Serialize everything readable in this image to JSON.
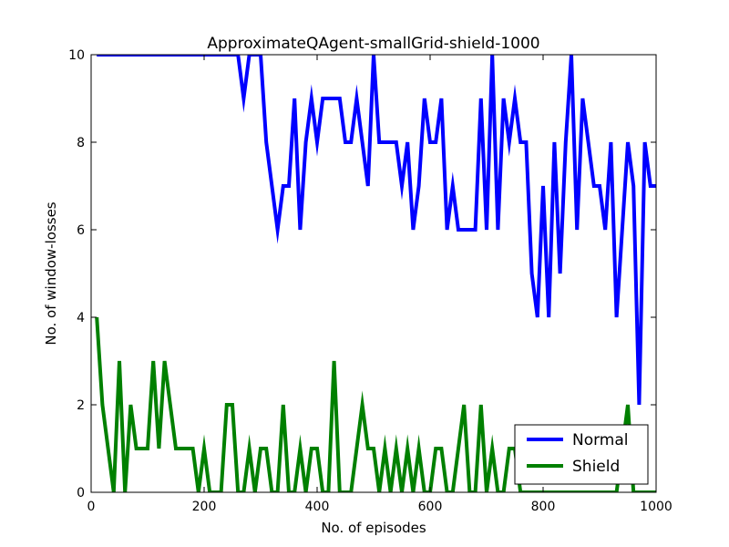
{
  "chart_data": {
    "type": "line",
    "title": "ApproximateQAgent-smallGrid-shield-1000",
    "xlabel": "No. of episodes",
    "ylabel": "No. of window-losses",
    "xlim": [
      0,
      1000
    ],
    "ylim": [
      0,
      10
    ],
    "xticks": [
      0,
      200,
      400,
      600,
      800,
      1000
    ],
    "yticks": [
      0,
      2,
      4,
      6,
      8,
      10
    ],
    "grid": false,
    "legend_position": "lower-right",
    "x": [
      10,
      20,
      30,
      40,
      50,
      60,
      70,
      80,
      90,
      100,
      110,
      120,
      130,
      140,
      150,
      160,
      170,
      180,
      190,
      200,
      210,
      220,
      230,
      240,
      250,
      260,
      270,
      280,
      290,
      300,
      310,
      320,
      330,
      340,
      350,
      360,
      370,
      380,
      390,
      400,
      410,
      420,
      430,
      440,
      450,
      460,
      470,
      480,
      490,
      500,
      510,
      520,
      530,
      540,
      550,
      560,
      570,
      580,
      590,
      600,
      610,
      620,
      630,
      640,
      650,
      660,
      670,
      680,
      690,
      700,
      710,
      720,
      730,
      740,
      750,
      760,
      770,
      780,
      790,
      800,
      810,
      820,
      830,
      840,
      850,
      860,
      870,
      880,
      890,
      900,
      910,
      920,
      930,
      940,
      950,
      960,
      970,
      980,
      990,
      1000
    ],
    "series": [
      {
        "name": "Normal",
        "color": "#0000ff",
        "values": [
          10,
          10,
          10,
          10,
          10,
          10,
          10,
          10,
          10,
          10,
          10,
          10,
          10,
          10,
          10,
          10,
          10,
          10,
          10,
          10,
          10,
          10,
          10,
          10,
          10,
          10,
          9,
          10,
          10,
          10,
          8,
          7,
          6,
          7,
          7,
          9,
          6,
          8,
          9,
          8,
          9,
          9,
          9,
          9,
          8,
          8,
          9,
          8,
          7,
          10,
          8,
          8,
          8,
          8,
          7,
          8,
          6,
          7,
          9,
          8,
          8,
          9,
          6,
          7,
          6,
          6,
          6,
          6,
          9,
          6,
          10,
          6,
          9,
          8,
          9,
          8,
          8,
          5,
          4,
          7,
          4,
          8,
          5,
          8,
          10,
          6,
          9,
          8,
          7,
          7,
          6,
          8,
          4,
          6,
          8,
          7,
          2,
          8,
          7,
          7
        ]
      },
      {
        "name": "Shield",
        "color": "#008000",
        "values": [
          4,
          2,
          1,
          0,
          3,
          0,
          2,
          1,
          1,
          1,
          3,
          1,
          3,
          2,
          1,
          1,
          1,
          1,
          0,
          1,
          0,
          0,
          0,
          2,
          2,
          0,
          0,
          1,
          0,
          1,
          1,
          0,
          0,
          2,
          0,
          0,
          1,
          0,
          1,
          1,
          0,
          0,
          3,
          0,
          0,
          0,
          1,
          2,
          1,
          1,
          0,
          1,
          0,
          1,
          0,
          1,
          0,
          1,
          0,
          0,
          1,
          1,
          0,
          0,
          1,
          2,
          0,
          0,
          2,
          0,
          1,
          0,
          0,
          1,
          1,
          0,
          0,
          0,
          0,
          0,
          0,
          0,
          0,
          0,
          0,
          0,
          0,
          0,
          0,
          0,
          0,
          0,
          0,
          1,
          2,
          0,
          0,
          0,
          0,
          0
        ]
      }
    ]
  }
}
